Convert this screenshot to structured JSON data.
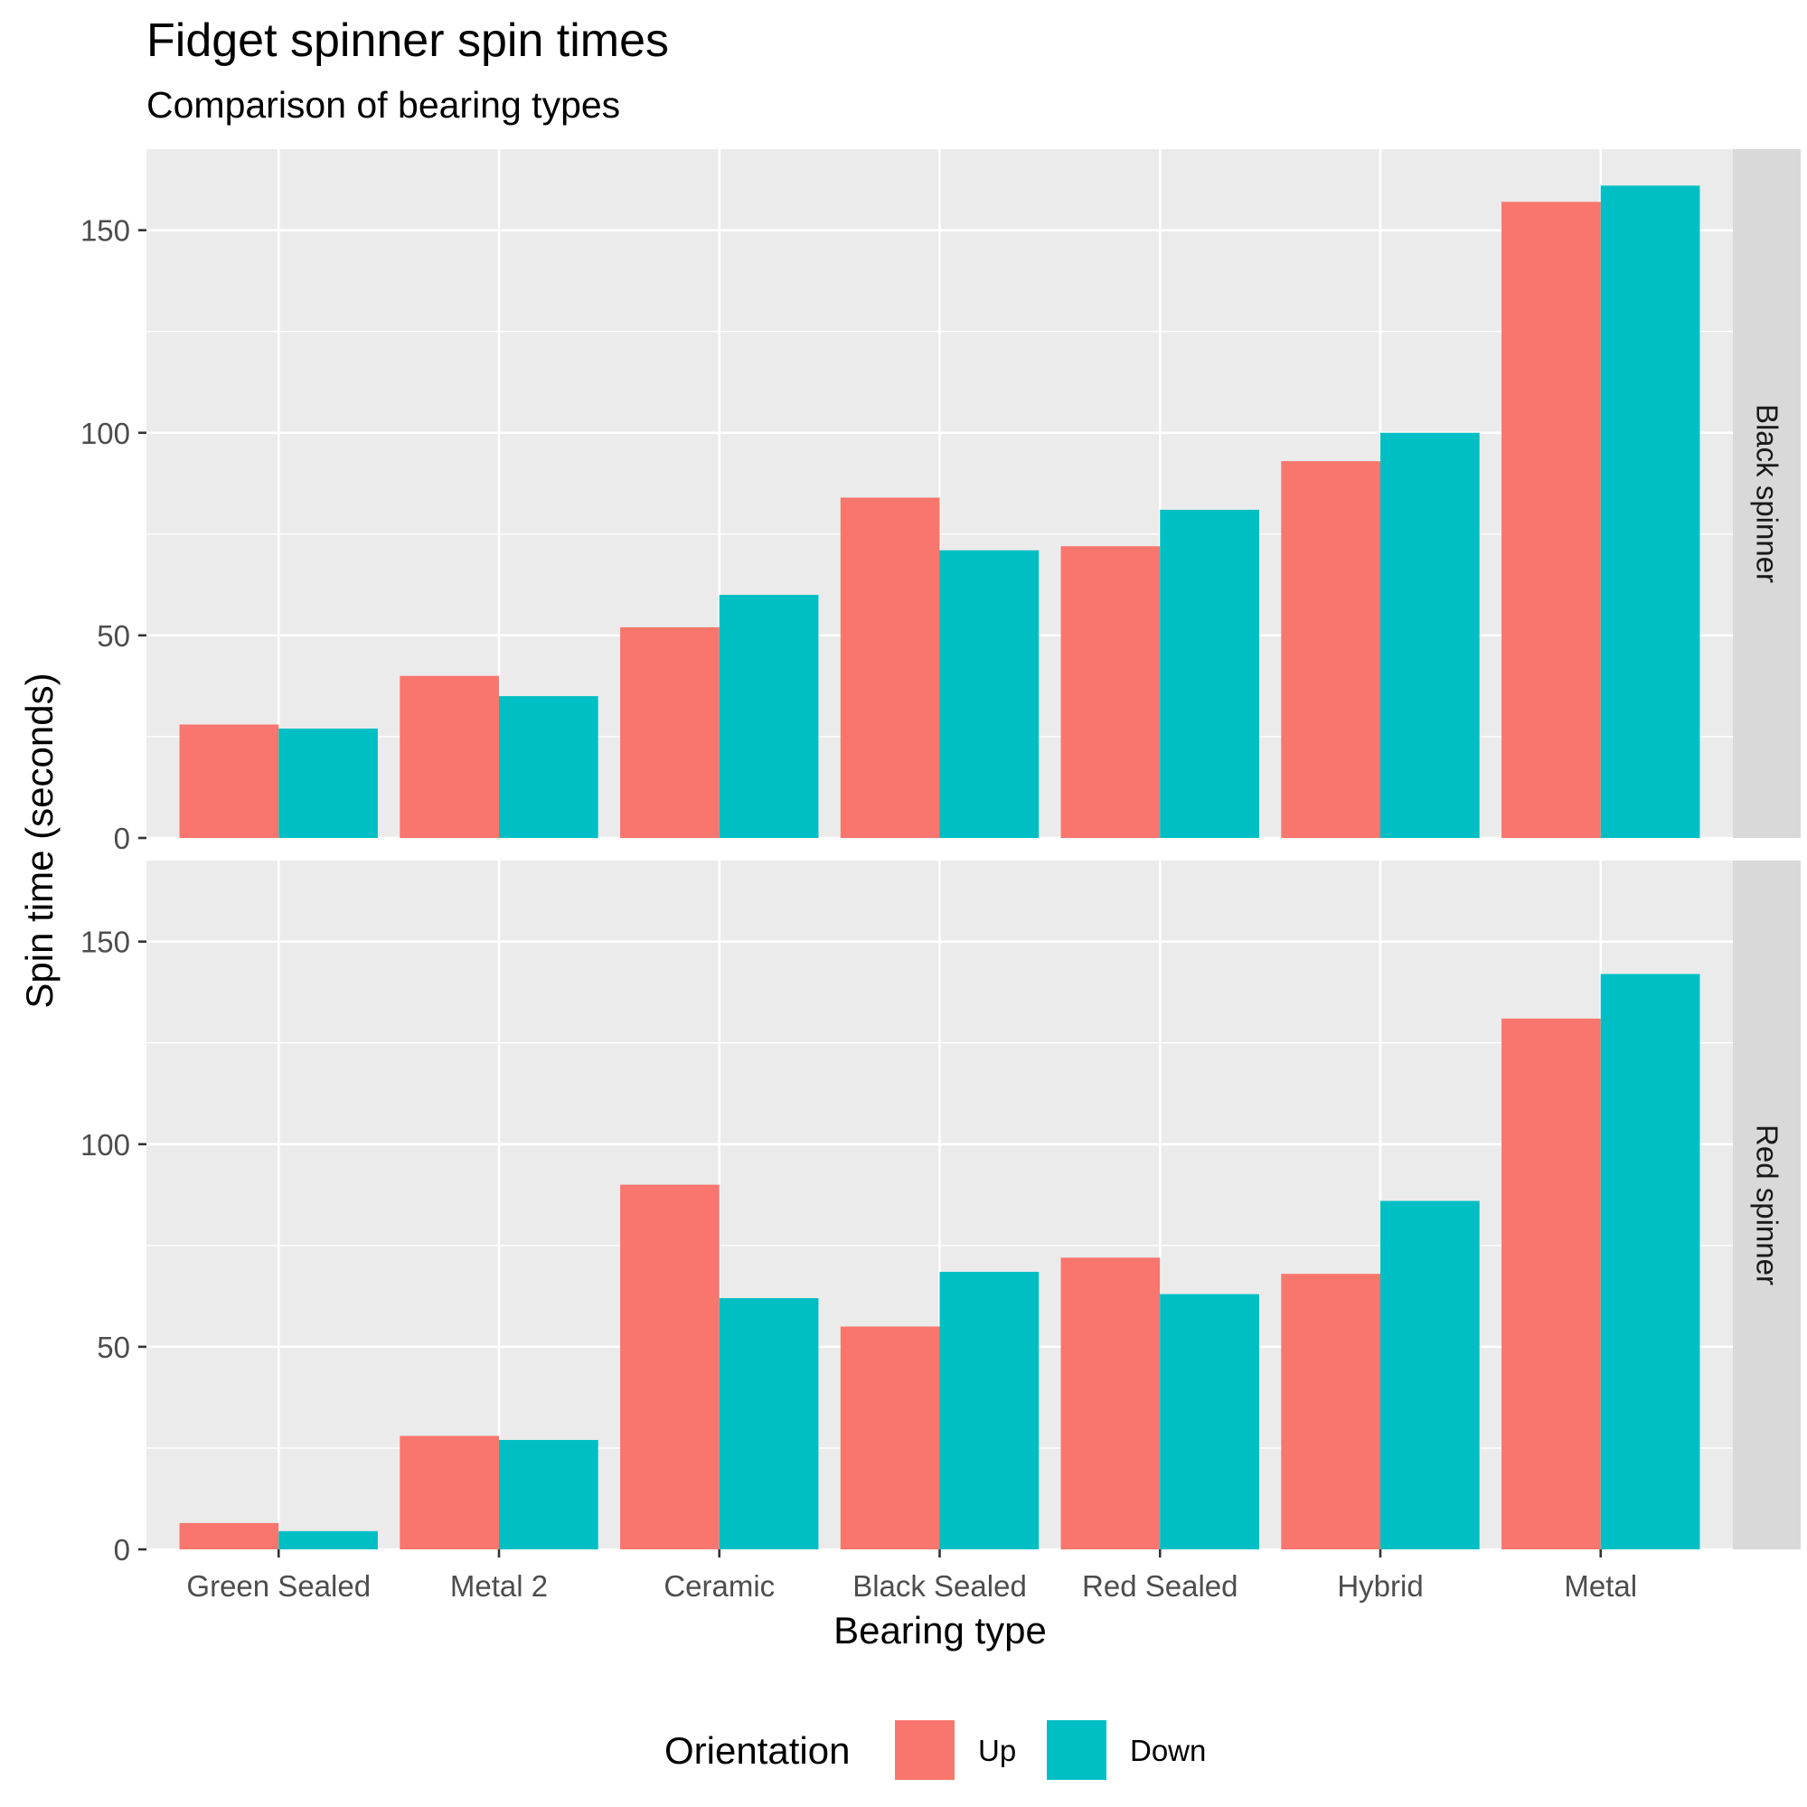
{
  "chart_data": {
    "type": "bar",
    "title": "Fidget spinner spin times",
    "subtitle": "Comparison of bearing types",
    "xlabel": "Bearing type",
    "ylabel": "Spin time (seconds)",
    "ylim": [
      0,
      170
    ],
    "y_ticks": [
      "0",
      "50",
      "100",
      "150"
    ],
    "grid": true,
    "legend_position": "bottom",
    "legend_title": "Orientation",
    "categories": [
      "Green Sealed",
      "Metal 2",
      "Ceramic",
      "Black Sealed",
      "Red Sealed",
      "Hybrid",
      "Metal"
    ],
    "series_names": [
      "Up",
      "Down"
    ],
    "colors": {
      "Up": "#F8766D",
      "Down": "#00BFC4",
      "panel": "#EBEBEB",
      "strip": "#D9D9D9",
      "grid": "#FFFFFF"
    },
    "facets": [
      {
        "label": "Black spinner",
        "series": [
          {
            "name": "Up",
            "values": [
              28,
              40,
              52,
              84,
              72,
              93,
              157
            ]
          },
          {
            "name": "Down",
            "values": [
              27,
              35,
              60,
              71,
              81,
              100,
              161
            ]
          }
        ]
      },
      {
        "label": "Red spinner",
        "series": [
          {
            "name": "Up",
            "values": [
              6.5,
              28,
              90,
              55,
              72,
              68,
              131
            ]
          },
          {
            "name": "Down",
            "values": [
              4.5,
              27,
              62,
              68.5,
              63,
              86,
              142
            ]
          }
        ]
      }
    ]
  }
}
